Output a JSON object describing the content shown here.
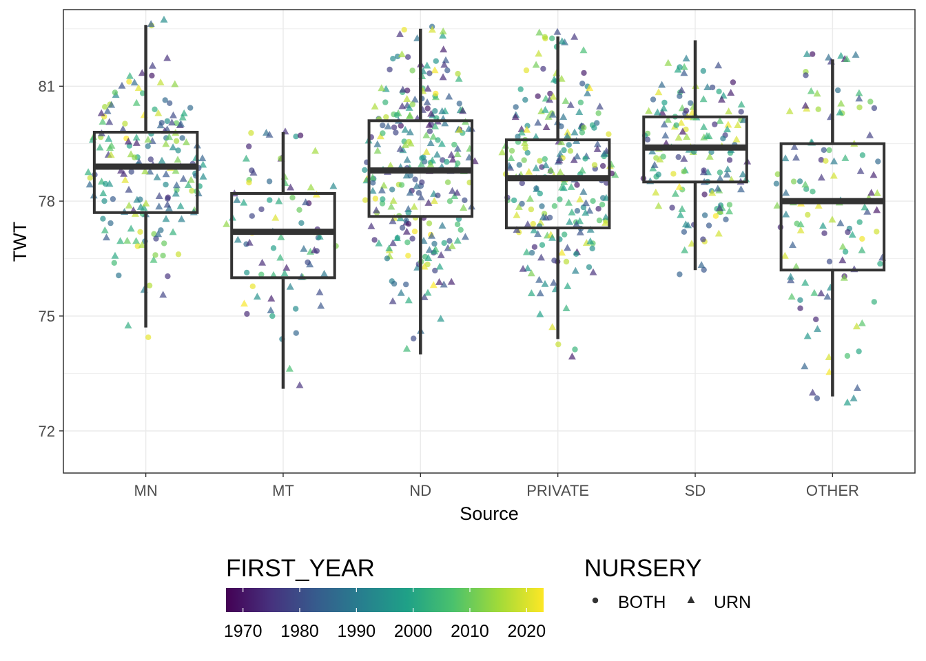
{
  "chart_data": {
    "type": "box",
    "xlabel": "Source",
    "ylabel": "TWT",
    "categories": [
      "MN",
      "MT",
      "ND",
      "PRIVATE",
      "SD",
      "OTHER"
    ],
    "y_ticks": [
      72,
      75,
      78,
      81
    ],
    "ylim": [
      70.9,
      83.0
    ],
    "grid": true,
    "boxes": [
      {
        "category": "MN",
        "min": 74.7,
        "q1": 77.7,
        "median": 78.9,
        "q3": 79.8,
        "max": 82.6
      },
      {
        "category": "MT",
        "min": 73.1,
        "q1": 76.0,
        "median": 77.2,
        "q3": 78.2,
        "max": 79.8
      },
      {
        "category": "ND",
        "min": 74.0,
        "q1": 77.6,
        "median": 78.8,
        "q3": 80.1,
        "max": 82.5
      },
      {
        "category": "PRIVATE",
        "min": 74.4,
        "q1": 77.3,
        "median": 78.6,
        "q3": 79.6,
        "max": 82.3
      },
      {
        "category": "SD",
        "min": 76.2,
        "q1": 78.5,
        "median": 79.4,
        "q3": 80.2,
        "max": 82.2
      },
      {
        "category": "OTHER",
        "min": 72.9,
        "q1": 76.2,
        "median": 78.0,
        "q3": 79.5,
        "max": 81.7
      }
    ],
    "legends": {
      "color": {
        "title": "FIRST_YEAR",
        "ticks": [
          "1970",
          "1980",
          "1990",
          "2000",
          "2010",
          "2020"
        ],
        "range": [
          1967,
          2023
        ],
        "colormap": [
          "#440154",
          "#46327e",
          "#365c8d",
          "#277f8e",
          "#1fa187",
          "#4ac16d",
          "#a0da39",
          "#fde725"
        ]
      },
      "shape": {
        "title": "NURSERY",
        "entries": [
          {
            "label": "BOTH",
            "shape": "circle"
          },
          {
            "label": "URN",
            "shape": "triangle"
          }
        ]
      }
    }
  }
}
